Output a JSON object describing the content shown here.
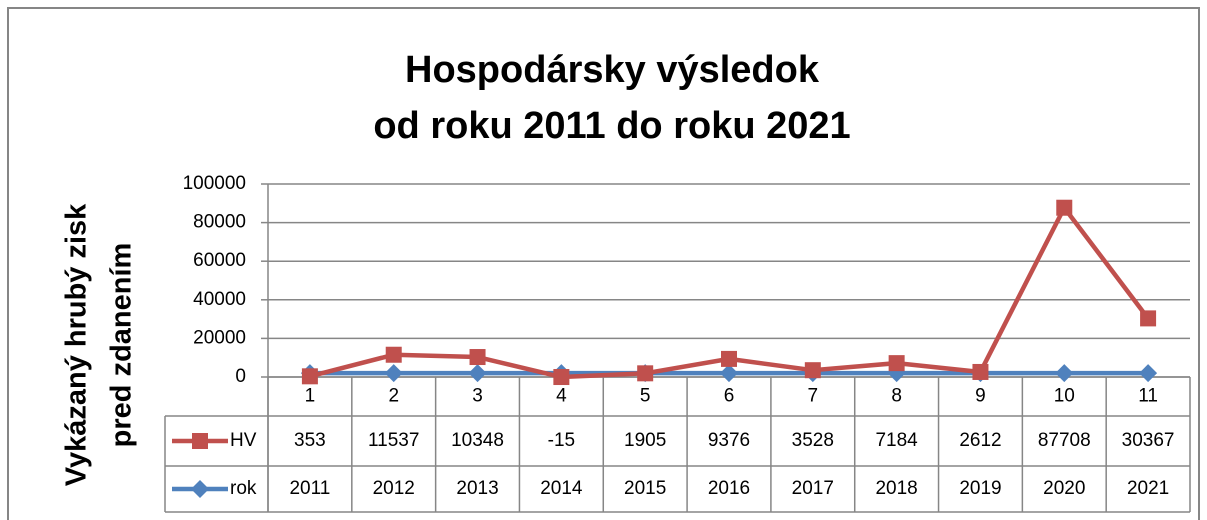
{
  "chart_data": {
    "type": "line",
    "title": [
      "Hospodársky výsledok",
      "od roku 2011 do roku 2021"
    ],
    "y_label": [
      "Vykázaný hrubý zisk",
      "pred zdanením"
    ],
    "categories": [
      "1",
      "2",
      "3",
      "4",
      "5",
      "6",
      "7",
      "8",
      "9",
      "10",
      "11"
    ],
    "series": [
      {
        "name": "HV",
        "color": "#c0504d",
        "marker": "square",
        "values": [
          353,
          11537,
          10348,
          -15,
          1905,
          9376,
          3528,
          7184,
          2612,
          87708,
          30367
        ]
      },
      {
        "name": "rok",
        "color": "#4f81bd",
        "marker": "diamond",
        "values": [
          2011,
          2012,
          2013,
          2014,
          2015,
          2016,
          2017,
          2018,
          2019,
          2020,
          2021
        ]
      }
    ],
    "ylim": [
      0,
      100000
    ],
    "yticks": [
      0,
      20000,
      40000,
      60000,
      80000,
      100000
    ],
    "grid": true,
    "data_table": true
  }
}
